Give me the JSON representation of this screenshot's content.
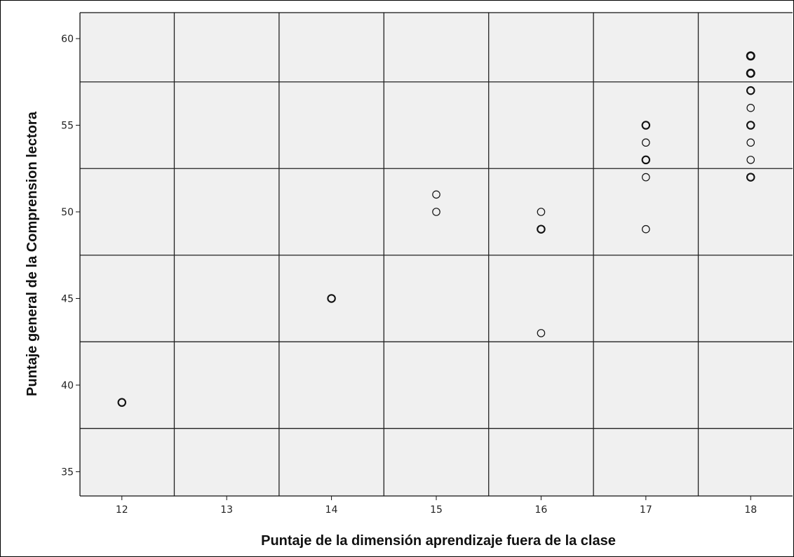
{
  "chart_data": {
    "type": "scatter",
    "title": "",
    "xlabel": "Puntaje de la dimensión aprendizaje fuera de la clase",
    "ylabel": "Puntaje general de la Comprension lectora",
    "xlim": [
      11.6,
      18.4
    ],
    "ylim": [
      33.6,
      61.5
    ],
    "x_ticks": [
      12,
      13,
      14,
      15,
      16,
      17,
      18
    ],
    "y_ticks": [
      35,
      40,
      45,
      50,
      55,
      60
    ],
    "grid": true,
    "points": [
      {
        "x": 12,
        "y": 39,
        "n": 2
      },
      {
        "x": 14,
        "y": 45,
        "n": 2
      },
      {
        "x": 15,
        "y": 51,
        "n": 1
      },
      {
        "x": 15,
        "y": 50,
        "n": 1
      },
      {
        "x": 16,
        "y": 50,
        "n": 1
      },
      {
        "x": 16,
        "y": 49,
        "n": 2
      },
      {
        "x": 16,
        "y": 43,
        "n": 1
      },
      {
        "x": 17,
        "y": 55,
        "n": 2
      },
      {
        "x": 17,
        "y": 54,
        "n": 1
      },
      {
        "x": 17,
        "y": 53,
        "n": 2
      },
      {
        "x": 17,
        "y": 52,
        "n": 1
      },
      {
        "x": 17,
        "y": 49,
        "n": 1
      },
      {
        "x": 18,
        "y": 59,
        "n": 3
      },
      {
        "x": 18,
        "y": 58,
        "n": 3
      },
      {
        "x": 18,
        "y": 57,
        "n": 2
      },
      {
        "x": 18,
        "y": 56,
        "n": 1
      },
      {
        "x": 18,
        "y": 55,
        "n": 2
      },
      {
        "x": 18,
        "y": 54,
        "n": 1
      },
      {
        "x": 18,
        "y": 53,
        "n": 1
      },
      {
        "x": 18,
        "y": 52,
        "n": 2
      }
    ],
    "colors": {
      "plot_background": "#f0f0f0",
      "grid": "#222222",
      "marker_stroke": "#111111"
    }
  }
}
